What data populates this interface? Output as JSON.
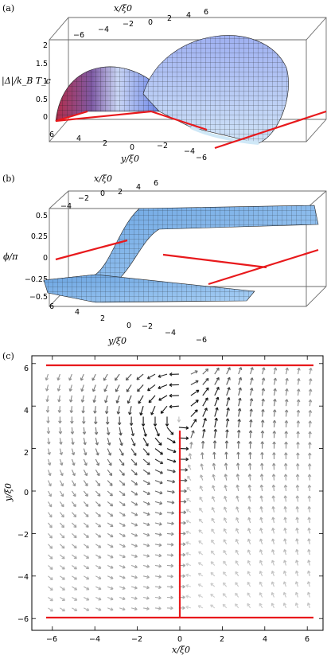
{
  "panels": {
    "a": {
      "label": "(a)",
      "ylabel": "|Δ|/k_B T_c",
      "xlabel_top": "x/ξ0",
      "ylabel_bottom": "y/ξ0",
      "x_ticks": [
        "−6",
        "−4",
        "−2",
        "0",
        "2",
        "4",
        "6"
      ],
      "y_ticks": [
        "6",
        "4",
        "2",
        "0",
        "−2",
        "−4",
        "−6"
      ],
      "z_ticks": [
        "0",
        "0.5",
        "1",
        "1.5",
        "2"
      ]
    },
    "b": {
      "label": "(b)",
      "ylabel": "ϕ/π",
      "xlabel_top": "x/ξ0",
      "ylabel_bottom": "y/ξ0",
      "x_ticks": [
        "−4",
        "−2",
        "0",
        "2",
        "4",
        "6"
      ],
      "y_ticks": [
        "6",
        "4",
        "2",
        "0",
        "−2",
        "−4",
        "−6"
      ],
      "z_ticks": [
        "0.5",
        "0.25",
        "0",
        "−0.25",
        "−0.5"
      ]
    },
    "c": {
      "label": "(c)",
      "xlabel": "x/ξ0",
      "ylabel": "y/ξ0",
      "x_ticks": [
        "−6",
        "−4",
        "−2",
        "0",
        "2",
        "4",
        "6"
      ],
      "y_ticks": [
        "6",
        "4",
        "2",
        "0",
        "−2",
        "−4",
        "−6"
      ]
    }
  },
  "colors": {
    "red": "#e8191c",
    "surfaceA_left": "#c23a55",
    "surfaceA_right": "#6f86e6",
    "surfaceB": "#7fb4ea"
  }
}
